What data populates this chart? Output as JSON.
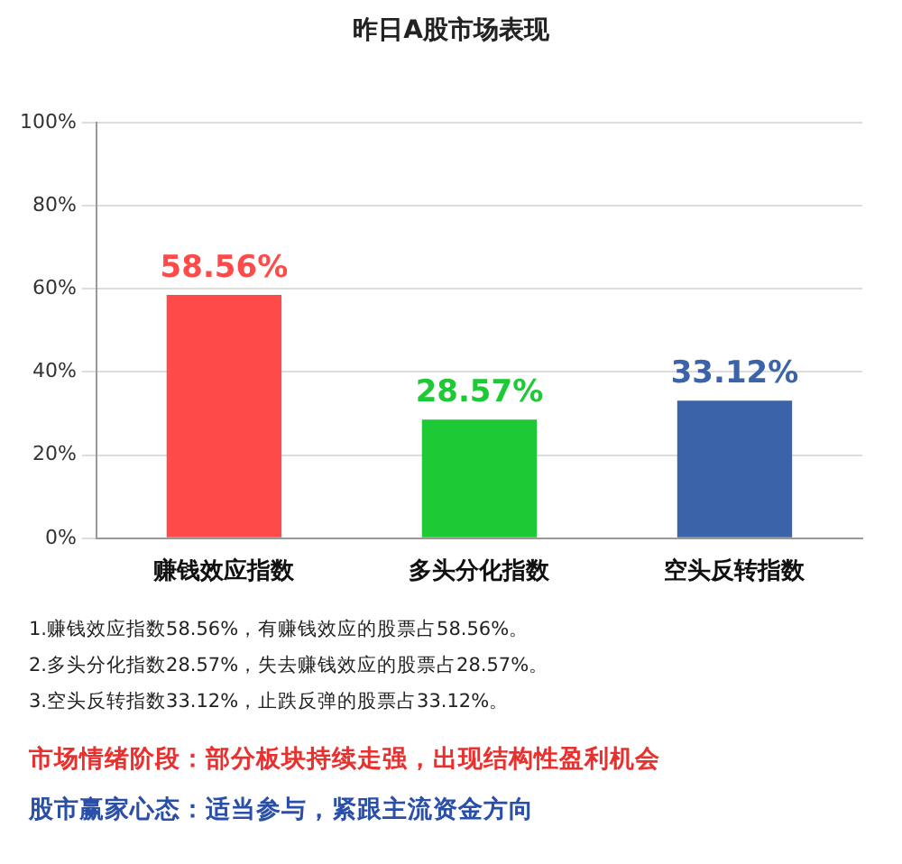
{
  "chart_data": {
    "type": "bar",
    "title": "昨日A股市场表现",
    "categories": [
      "赚钱效应指数",
      "多头分化指数",
      "空头反转指数"
    ],
    "values": [
      58.56,
      28.57,
      33.12
    ],
    "value_labels": [
      "58.56%",
      "28.57%",
      "33.12%"
    ],
    "colors": [
      "#ff4a4a",
      "#1dc934",
      "#3a63a9"
    ],
    "ylim": [
      0,
      100
    ],
    "yticks": [
      {
        "value": 0,
        "label": "0%"
      },
      {
        "value": 20,
        "label": "20%"
      },
      {
        "value": 40,
        "label": "40%"
      },
      {
        "value": 60,
        "label": "60%"
      },
      {
        "value": 80,
        "label": "80%"
      },
      {
        "value": 100,
        "label": "100%"
      }
    ],
    "grid": "y",
    "legend": false,
    "annotations": [
      "1.赚钱效应指数58.56%，有赚钱效应的股票占58.56%。",
      "2.多头分化指数28.57%，失去赚钱效应的股票占28.57%。",
      "3.空头反转指数33.12%，止跌反弹的股票占33.12%。",
      "市场情绪阶段：部分板块持续走强，出现结构性盈利机会",
      "股市赢家心态：适当参与，紧跟主流资金方向"
    ]
  }
}
